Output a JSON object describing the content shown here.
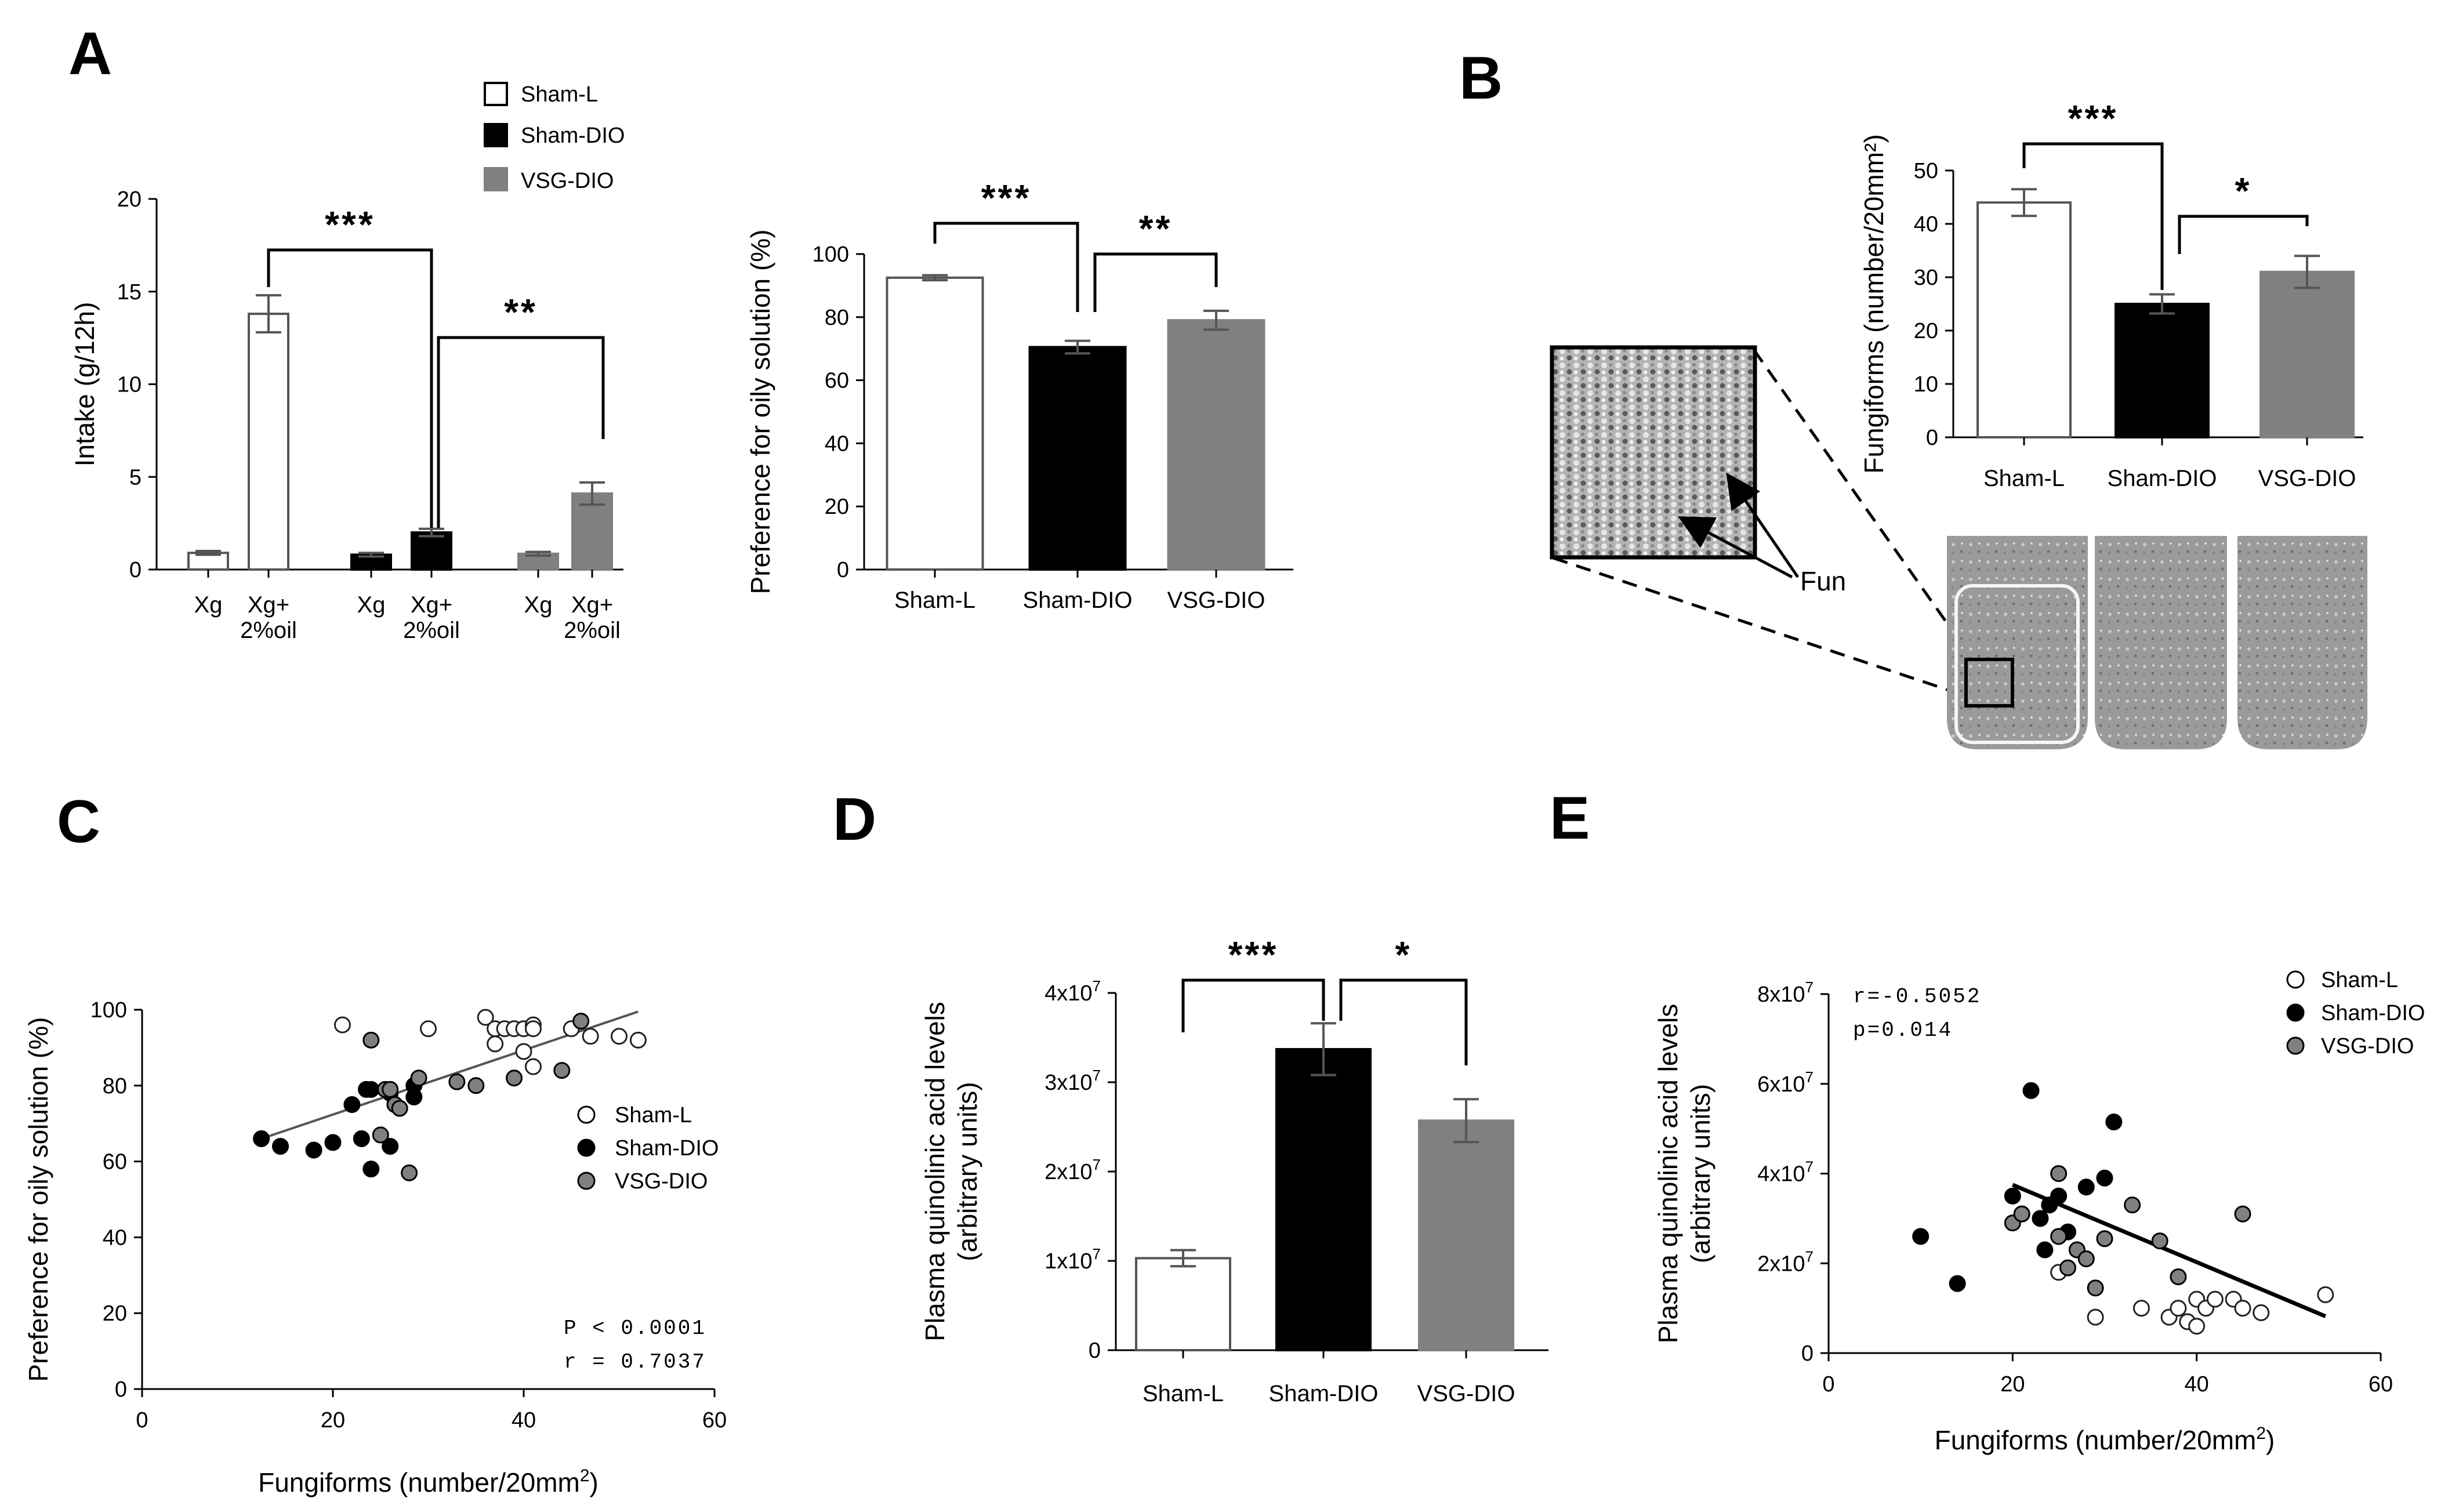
{
  "panel_labels": {
    "a": "A",
    "b": "B",
    "c": "C",
    "d": "D",
    "e": "E"
  },
  "colors": {
    "sham_l": "#ffffff",
    "sham_dio": "#000000",
    "vsg_dio": "#808080",
    "axis": "#000000",
    "error": "#555555"
  },
  "legend_a": [
    {
      "label": "Sham-L",
      "color": "#ffffff"
    },
    {
      "label": "Sham-DIO",
      "color": "#000000"
    },
    {
      "label": "VSG-DIO",
      "color": "#808080"
    }
  ],
  "legend_ce": [
    {
      "label": "Sham-L",
      "color": "#ffffff"
    },
    {
      "label": "Sham-DIO",
      "color": "#000000"
    },
    {
      "label": "VSG-DIO",
      "color": "#808080"
    }
  ],
  "chart_data": [
    {
      "id": "A1",
      "type": "bar",
      "title": "",
      "ylabel": "Intake (g/12h)",
      "ylim": [
        0,
        20
      ],
      "yticks": [
        0,
        5,
        10,
        15,
        20
      ],
      "groups": [
        "Sham-L",
        "Sham-DIO",
        "VSG-DIO"
      ],
      "categories": [
        "Xg",
        "Xg+ 2%oil",
        "Xg",
        "Xg+ 2%oil",
        "Xg",
        "Xg+ 2%oil"
      ],
      "category_lines": [
        [
          "Xg"
        ],
        [
          "Xg+",
          "2%oil"
        ],
        [
          "Xg"
        ],
        [
          "Xg+",
          "2%oil"
        ],
        [
          "Xg"
        ],
        [
          "Xg+",
          "2%oil"
        ]
      ],
      "values": [
        0.9,
        13.8,
        0.8,
        2.0,
        0.85,
        4.1
      ],
      "errors": [
        0.1,
        1.0,
        0.1,
        0.2,
        0.1,
        0.6
      ],
      "colors": [
        "#ffffff",
        "#ffffff",
        "#000000",
        "#000000",
        "#808080",
        "#808080"
      ],
      "significance": [
        {
          "from": 1,
          "to": 3,
          "label": "***"
        },
        {
          "from": 3,
          "to": 5,
          "label": "**"
        }
      ]
    },
    {
      "id": "A2",
      "type": "bar",
      "title": "",
      "ylabel": "Preference for oily solution (%)",
      "ylim": [
        0,
        100
      ],
      "yticks": [
        0,
        20,
        40,
        60,
        80,
        100
      ],
      "categories": [
        "Sham-L",
        "Sham-DIO",
        "VSG-DIO"
      ],
      "values": [
        92.5,
        70.5,
        79
      ],
      "errors": [
        0.8,
        2.0,
        3.0
      ],
      "colors": [
        "#ffffff",
        "#000000",
        "#808080"
      ],
      "significance": [
        {
          "from": 0,
          "to": 1,
          "label": "***"
        },
        {
          "from": 1,
          "to": 2,
          "label": "**"
        }
      ]
    },
    {
      "id": "B",
      "type": "bar",
      "title": "",
      "ylabel": "Fungiforms (number/20mm²)",
      "ylim": [
        0,
        50
      ],
      "yticks": [
        0,
        10,
        20,
        30,
        40,
        50
      ],
      "categories": [
        "Sham-L",
        "Sham-DIO",
        "VSG-DIO"
      ],
      "values": [
        44,
        25,
        31
      ],
      "errors": [
        2.5,
        1.8,
        3.0
      ],
      "colors": [
        "#ffffff",
        "#000000",
        "#808080"
      ],
      "significance": [
        {
          "from": 0,
          "to": 1,
          "label": "***"
        },
        {
          "from": 1,
          "to": 2,
          "label": "*"
        }
      ],
      "annotation": "Fun"
    },
    {
      "id": "C",
      "type": "scatter",
      "title": "",
      "xlabel": "Fungiforms (number/20mm²)",
      "ylabel": "Preference for oily solution (%)",
      "xlim": [
        0,
        60
      ],
      "ylim": [
        0,
        100
      ],
      "xticks": [
        0,
        20,
        40,
        60
      ],
      "yticks": [
        0,
        20,
        40,
        60,
        80,
        100
      ],
      "stats": [
        "P < 0.0001",
        "r = 0.7037"
      ],
      "fit": {
        "x0": 12.5,
        "y0": 66,
        "x1": 52,
        "y1": 99.5
      },
      "series": [
        {
          "name": "Sham-L",
          "color": "#ffffff",
          "x": [
            21,
            30,
            36,
            37,
            38,
            39,
            40,
            41,
            41,
            40,
            37,
            41,
            45,
            47,
            50,
            52
          ],
          "y": [
            96,
            95,
            98,
            95,
            95,
            95,
            95,
            96,
            85,
            89,
            91,
            95,
            95,
            93,
            93,
            92
          ]
        },
        {
          "name": "Sham-DIO",
          "color": "#000000",
          "x": [
            12.5,
            14.5,
            18,
            20,
            22,
            23,
            23.5,
            24,
            24,
            26,
            26,
            28.5,
            28.5
          ],
          "y": [
            66,
            64,
            63,
            65,
            75,
            66,
            79,
            79,
            58,
            64,
            78,
            80,
            77
          ]
        },
        {
          "name": "VSG-DIO",
          "color": "#808080",
          "x": [
            24,
            25,
            25.5,
            26,
            26.5,
            27,
            28,
            29,
            33,
            35,
            39,
            44,
            46
          ],
          "y": [
            92,
            67,
            79,
            79,
            75,
            74,
            57,
            82,
            81,
            80,
            82,
            84,
            97
          ]
        }
      ]
    },
    {
      "id": "D",
      "type": "bar",
      "title": "",
      "ylabel": "Plasma quinolinic acid levels (arbitrary units)",
      "ylim": [
        0,
        40000000
      ],
      "yticks": [
        0,
        10000000,
        20000000,
        30000000,
        40000000
      ],
      "ytick_base": [
        "0",
        "1x10",
        "2x10",
        "3x10",
        "4x10"
      ],
      "ytick_exp": [
        "",
        "7",
        "7",
        "7",
        "7"
      ],
      "categories": [
        "Sham-L",
        "Sham-DIO",
        "VSG-DIO"
      ],
      "values": [
        10300000,
        33700000,
        25700000
      ],
      "errors": [
        900000,
        2900000,
        2400000
      ],
      "colors": [
        "#ffffff",
        "#000000",
        "#808080"
      ],
      "significance": [
        {
          "from": 0,
          "to": 1,
          "label": "***"
        },
        {
          "from": 1,
          "to": 2,
          "label": "*"
        }
      ]
    },
    {
      "id": "E",
      "type": "scatter",
      "title": "",
      "xlabel": "Fungiforms (number/20mm²)",
      "ylabel": "Plasma quinolinic acid levels (arbitrary units)",
      "xlim": [
        0,
        60
      ],
      "ylim": [
        0,
        80000000
      ],
      "xticks": [
        0,
        20,
        40,
        60
      ],
      "yticks": [
        0,
        20000000,
        40000000,
        60000000,
        80000000
      ],
      "ytick_base": [
        "0",
        "2x10",
        "4x10",
        "6x10",
        "8x10"
      ],
      "ytick_exp": [
        "",
        "7",
        "7",
        "7",
        "7"
      ],
      "stats": [
        "r=-0.5052",
        "p=0.014"
      ],
      "fit": {
        "x0": 20,
        "y0": 37500000,
        "x1": 54,
        "y1": 8200000
      },
      "series": [
        {
          "name": "Sham-L",
          "color": "#ffffff",
          "x": [
            25,
            29,
            34,
            37,
            38,
            39,
            40,
            40,
            41,
            42,
            44,
            45,
            47,
            54
          ],
          "y": [
            18000000,
            8000000,
            10000000,
            8000000,
            10000000,
            7000000,
            12000000,
            6000000,
            10000000,
            12000000,
            12000000,
            10000000,
            9000000,
            13000000
          ]
        },
        {
          "name": "Sham-DIO",
          "color": "#000000",
          "x": [
            10,
            14,
            20,
            21,
            22,
            23,
            23.5,
            24,
            25,
            26,
            28,
            30,
            31
          ],
          "y": [
            26000000,
            15500000,
            35000000,
            31000000,
            58500000,
            30000000,
            23000000,
            33000000,
            35000000,
            27000000,
            37000000,
            39000000,
            51500000
          ]
        },
        {
          "name": "VSG-DIO",
          "color": "#808080",
          "x": [
            20,
            21,
            25,
            25,
            26,
            27,
            28,
            29,
            30,
            33,
            36,
            38,
            45
          ],
          "y": [
            29000000,
            31000000,
            26000000,
            40000000,
            19000000,
            23000000,
            21000000,
            14500000,
            25500000,
            33000000,
            25000000,
            17000000,
            31000000
          ]
        }
      ]
    }
  ]
}
